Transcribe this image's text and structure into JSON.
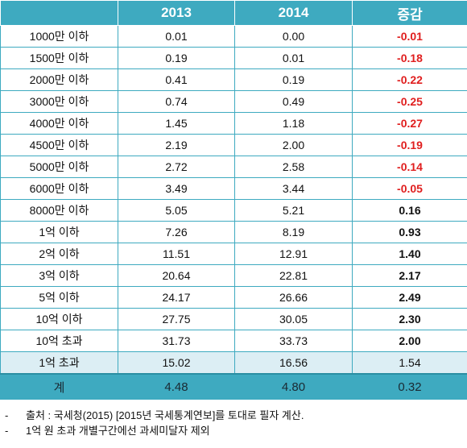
{
  "table": {
    "headers": [
      "",
      "2013",
      "2014",
      "증감"
    ],
    "rows": [
      {
        "label": "1000만 이하",
        "y2013": "0.01",
        "y2014": "0.00",
        "change": "-0.01"
      },
      {
        "label": "1500만 이하",
        "y2013": "0.19",
        "y2014": "0.01",
        "change": "-0.18"
      },
      {
        "label": "2000만 이하",
        "y2013": "0.41",
        "y2014": "0.19",
        "change": "-0.22"
      },
      {
        "label": "3000만 이하",
        "y2013": "0.74",
        "y2014": "0.49",
        "change": "-0.25"
      },
      {
        "label": "4000만 이하",
        "y2013": "1.45",
        "y2014": "1.18",
        "change": "-0.27"
      },
      {
        "label": "4500만 이하",
        "y2013": "2.19",
        "y2014": "2.00",
        "change": "-0.19"
      },
      {
        "label": "5000만 이하",
        "y2013": "2.72",
        "y2014": "2.58",
        "change": "-0.14"
      },
      {
        "label": "6000만 이하",
        "y2013": "3.49",
        "y2014": "3.44",
        "change": "-0.05"
      },
      {
        "label": "8000만 이하",
        "y2013": "5.05",
        "y2014": "5.21",
        "change": "0.16"
      },
      {
        "label": "1억 이하",
        "y2013": "7.26",
        "y2014": "8.19",
        "change": "0.93"
      },
      {
        "label": "2억 이하",
        "y2013": "11.51",
        "y2014": "12.91",
        "change": "1.40"
      },
      {
        "label": "3억 이하",
        "y2013": "20.64",
        "y2014": "22.81",
        "change": "2.17"
      },
      {
        "label": "5억 이하",
        "y2013": "24.17",
        "y2014": "26.66",
        "change": "2.49"
      },
      {
        "label": "10억 이하",
        "y2013": "27.75",
        "y2014": "30.05",
        "change": "2.30"
      },
      {
        "label": "10억 초과",
        "y2013": "31.73",
        "y2014": "33.73",
        "change": "2.00"
      }
    ],
    "highlight_row": {
      "label": "1억 초과",
      "y2013": "15.02",
      "y2014": "16.56",
      "change": "1.54"
    },
    "total_row": {
      "label": "계",
      "y2013": "4.48",
      "y2014": "4.80",
      "change": "0.32"
    }
  },
  "notes": [
    {
      "dash": "-",
      "text": "출처 : 국세청(2015) [2015년 국세통계연보]를 토대로 필자 계산."
    },
    {
      "dash": "-",
      "text": "1억 원 초과 개별구간에선 과세미달자 제외"
    }
  ],
  "colors": {
    "header_bg": "#3eaac0",
    "highlight_bg": "#dceef4",
    "negative": "#e01e1e"
  }
}
